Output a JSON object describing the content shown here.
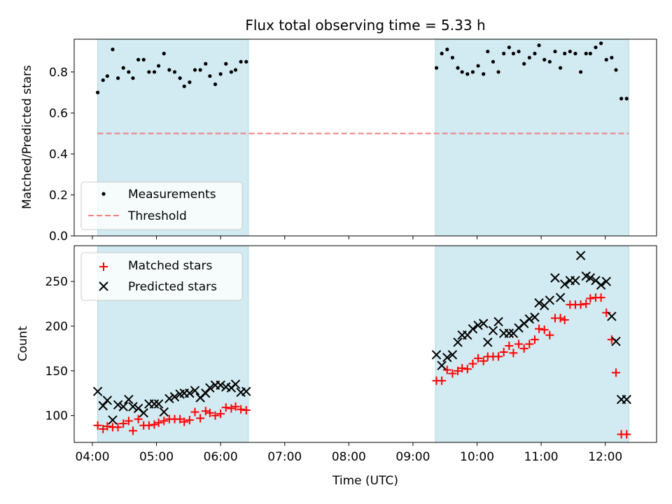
{
  "figure": {
    "title": "Flux total observing time = 5.33 h",
    "xlabel": "Time (UTC)"
  },
  "colors": {
    "shade": "#add8e6",
    "measurement": "#000000",
    "threshold": "#f08080",
    "matched": "#ff0000",
    "predicted": "#000000"
  },
  "chart_data": [
    {
      "type": "scatter",
      "panel": "top",
      "ylabel": "Matched/Predicted stars",
      "xlim": [
        "03:43",
        "12:48"
      ],
      "ylim": [
        0,
        0.96
      ],
      "yticks": [
        0.0,
        0.2,
        0.4,
        0.6,
        0.8
      ],
      "ytick_labels": [
        "0.0",
        "0.2",
        "0.4",
        "0.6",
        "0.8"
      ],
      "shaded_intervals": [
        [
          "04:05",
          "06:26"
        ],
        [
          "09:21",
          "12:22"
        ]
      ],
      "threshold": 0.5,
      "legend": {
        "position": "lower-left",
        "entries": [
          "Measurements",
          "Threshold"
        ]
      },
      "series": [
        {
          "name": "Measurements",
          "marker": "dot",
          "x": [
            "04:05",
            "04:10",
            "04:14",
            "04:19",
            "04:24",
            "04:29",
            "04:34",
            "04:38",
            "04:43",
            "04:48",
            "04:53",
            "04:58",
            "05:02",
            "05:07",
            "05:12",
            "05:17",
            "05:22",
            "05:26",
            "05:31",
            "05:36",
            "05:41",
            "05:46",
            "05:50",
            "05:55",
            "06:00",
            "06:05",
            "06:10",
            "06:14",
            "06:19",
            "06:24",
            "09:22",
            "09:27",
            "09:32",
            "09:37",
            "09:42",
            "09:46",
            "09:51",
            "09:56",
            "10:01",
            "10:06",
            "10:10",
            "10:15",
            "10:20",
            "10:25",
            "10:30",
            "10:34",
            "10:39",
            "10:44",
            "10:49",
            "10:54",
            "10:58",
            "11:03",
            "11:08",
            "11:13",
            "11:18",
            "11:22",
            "11:27",
            "11:32",
            "11:37",
            "11:42",
            "11:46",
            "11:51",
            "11:56",
            "12:01",
            "12:06",
            "12:10",
            "12:15",
            "12:20"
          ],
          "y": [
            0.7,
            0.76,
            0.78,
            0.91,
            0.77,
            0.82,
            0.8,
            0.77,
            0.86,
            0.86,
            0.8,
            0.8,
            0.83,
            0.89,
            0.81,
            0.8,
            0.77,
            0.73,
            0.75,
            0.81,
            0.81,
            0.84,
            0.78,
            0.74,
            0.79,
            0.84,
            0.8,
            0.81,
            0.85,
            0.85,
            0.82,
            0.89,
            0.91,
            0.87,
            0.82,
            0.8,
            0.79,
            0.8,
            0.83,
            0.79,
            0.9,
            0.85,
            0.8,
            0.89,
            0.92,
            0.89,
            0.9,
            0.84,
            0.87,
            0.89,
            0.93,
            0.86,
            0.85,
            0.9,
            0.82,
            0.89,
            0.9,
            0.89,
            0.8,
            0.89,
            0.89,
            0.92,
            0.94,
            0.86,
            0.87,
            0.81,
            0.67,
            0.67
          ]
        },
        {
          "name": "Threshold",
          "style": "dashed",
          "x": [
            "04:05",
            "12:22"
          ],
          "y": [
            0.5,
            0.5
          ]
        }
      ]
    },
    {
      "type": "scatter",
      "panel": "bottom",
      "ylabel": "Count",
      "xlim": [
        "03:43",
        "12:48"
      ],
      "ylim": [
        70,
        290
      ],
      "yticks": [
        100,
        150,
        200,
        250
      ],
      "ytick_labels": [
        "100",
        "150",
        "200",
        "250"
      ],
      "xticks": [
        "04:00",
        "05:00",
        "06:00",
        "07:00",
        "08:00",
        "09:00",
        "10:00",
        "11:00",
        "12:00"
      ],
      "shaded_intervals": [
        [
          "04:05",
          "06:26"
        ],
        [
          "09:21",
          "12:22"
        ]
      ],
      "legend": {
        "position": "upper-left",
        "entries": [
          "Matched stars",
          "Predicted stars"
        ]
      },
      "series": [
        {
          "name": "Matched stars",
          "marker": "plus",
          "x": [
            "04:05",
            "04:10",
            "04:14",
            "04:19",
            "04:24",
            "04:29",
            "04:34",
            "04:38",
            "04:43",
            "04:48",
            "04:53",
            "04:58",
            "05:02",
            "05:07",
            "05:12",
            "05:17",
            "05:22",
            "05:26",
            "05:31",
            "05:36",
            "05:41",
            "05:46",
            "05:50",
            "05:55",
            "06:00",
            "06:05",
            "06:10",
            "06:14",
            "06:19",
            "06:24",
            "09:22",
            "09:27",
            "09:32",
            "09:37",
            "09:42",
            "09:46",
            "09:51",
            "09:56",
            "10:01",
            "10:06",
            "10:10",
            "10:15",
            "10:20",
            "10:25",
            "10:30",
            "10:34",
            "10:39",
            "10:44",
            "10:49",
            "10:54",
            "10:58",
            "11:03",
            "11:08",
            "11:13",
            "11:18",
            "11:22",
            "11:27",
            "11:32",
            "11:37",
            "11:42",
            "11:46",
            "11:51",
            "11:56",
            "12:01",
            "12:06",
            "12:10",
            "12:15",
            "12:20"
          ],
          "y": [
            89,
            85,
            88,
            87,
            87,
            91,
            94,
            83,
            96,
            89,
            89,
            90,
            92,
            94,
            96,
            96,
            96,
            93,
            95,
            104,
            97,
            105,
            103,
            100,
            102,
            109,
            108,
            110,
            107,
            106,
            139,
            139,
            151,
            147,
            150,
            153,
            152,
            158,
            164,
            161,
            166,
            166,
            166,
            171,
            178,
            170,
            180,
            175,
            180,
            185,
            197,
            196,
            190,
            209,
            209,
            207,
            224,
            224,
            224,
            225,
            231,
            232,
            232,
            215,
            185,
            148,
            79,
            79
          ]
        },
        {
          "name": "Predicted stars",
          "marker": "x",
          "x": [
            "04:05",
            "04:10",
            "04:14",
            "04:19",
            "04:24",
            "04:29",
            "04:34",
            "04:38",
            "04:43",
            "04:48",
            "04:53",
            "04:58",
            "05:02",
            "05:07",
            "05:12",
            "05:17",
            "05:22",
            "05:26",
            "05:31",
            "05:36",
            "05:41",
            "05:46",
            "05:50",
            "05:55",
            "06:00",
            "06:05",
            "06:10",
            "06:14",
            "06:19",
            "06:24",
            "09:22",
            "09:27",
            "09:32",
            "09:37",
            "09:42",
            "09:46",
            "09:51",
            "09:56",
            "10:01",
            "10:06",
            "10:10",
            "10:15",
            "10:20",
            "10:25",
            "10:30",
            "10:34",
            "10:39",
            "10:44",
            "10:49",
            "10:54",
            "10:58",
            "11:03",
            "11:08",
            "11:13",
            "11:18",
            "11:22",
            "11:27",
            "11:32",
            "11:37",
            "11:42",
            "11:46",
            "11:51",
            "11:56",
            "12:01",
            "12:06",
            "12:10",
            "12:15",
            "12:20"
          ],
          "y": [
            127,
            111,
            117,
            95,
            112,
            110,
            118,
            110,
            108,
            103,
            113,
            113,
            113,
            104,
            119,
            121,
            124,
            125,
            125,
            128,
            120,
            125,
            131,
            134,
            134,
            132,
            131,
            135,
            126,
            127,
            168,
            156,
            165,
            168,
            182,
            190,
            190,
            197,
            201,
            203,
            182,
            195,
            205,
            192,
            192,
            192,
            198,
            203,
            208,
            210,
            226,
            223,
            229,
            254,
            232,
            247,
            251,
            251,
            279,
            256,
            254,
            251,
            246,
            250,
            211,
            183,
            118,
            118
          ]
        }
      ]
    }
  ]
}
